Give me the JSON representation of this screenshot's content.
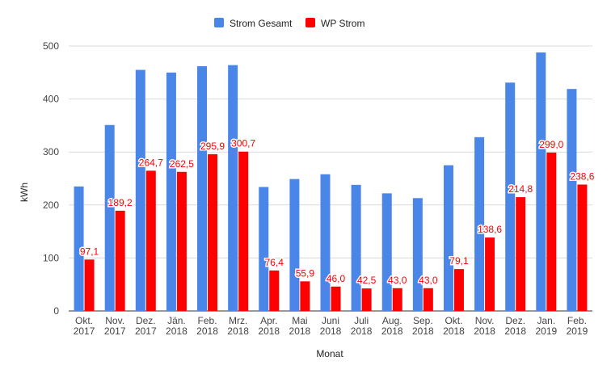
{
  "chart_data": {
    "type": "bar",
    "title": "",
    "xlabel": "Monat",
    "ylabel": "kWh",
    "ylim": [
      0,
      500
    ],
    "yticks": [
      "0",
      "100",
      "200",
      "300",
      "400",
      "500"
    ],
    "grid": true,
    "legend_position": "top",
    "categories": [
      [
        "Okt.",
        "2017"
      ],
      [
        "Nov.",
        "2017"
      ],
      [
        "Dez.",
        "2017"
      ],
      [
        "Jän.",
        "2018"
      ],
      [
        "Feb.",
        "2018"
      ],
      [
        "Mrz.",
        "2018"
      ],
      [
        "Apr.",
        "2018"
      ],
      [
        "Mai",
        "2018"
      ],
      [
        "Juni",
        "2018"
      ],
      [
        "Juli",
        "2018"
      ],
      [
        "Aug.",
        "2018"
      ],
      [
        "Sep.",
        "2018"
      ],
      [
        "Okt.",
        "2018"
      ],
      [
        "Nov.",
        "2018"
      ],
      [
        "Dez.",
        "2018"
      ],
      [
        "Jan.",
        "2019"
      ],
      [
        "Feb.",
        "2019"
      ]
    ],
    "series": [
      {
        "name": "Strom Gesamt",
        "color": "#4a86e8",
        "values": [
          235,
          351,
          455,
          450,
          462,
          464,
          234,
          249,
          258,
          238,
          222,
          213,
          275,
          328,
          431,
          488,
          419
        ]
      },
      {
        "name": "WP Strom",
        "color": "#ff0000",
        "values": [
          97.1,
          189.2,
          264.7,
          262.5,
          295.9,
          300.7,
          76.4,
          55.9,
          46.0,
          42.5,
          43.0,
          43.0,
          79.1,
          138.6,
          214.8,
          299.0,
          238.6
        ],
        "data_labels": [
          "97,1",
          "189,2",
          "264,7",
          "262,5",
          "295,9",
          "300,7",
          "76,4",
          "55,9",
          "46,0",
          "42,5",
          "43,0",
          "43,0",
          "79,1",
          "138,6",
          "214,8",
          "299,0",
          "238,6"
        ]
      }
    ]
  }
}
